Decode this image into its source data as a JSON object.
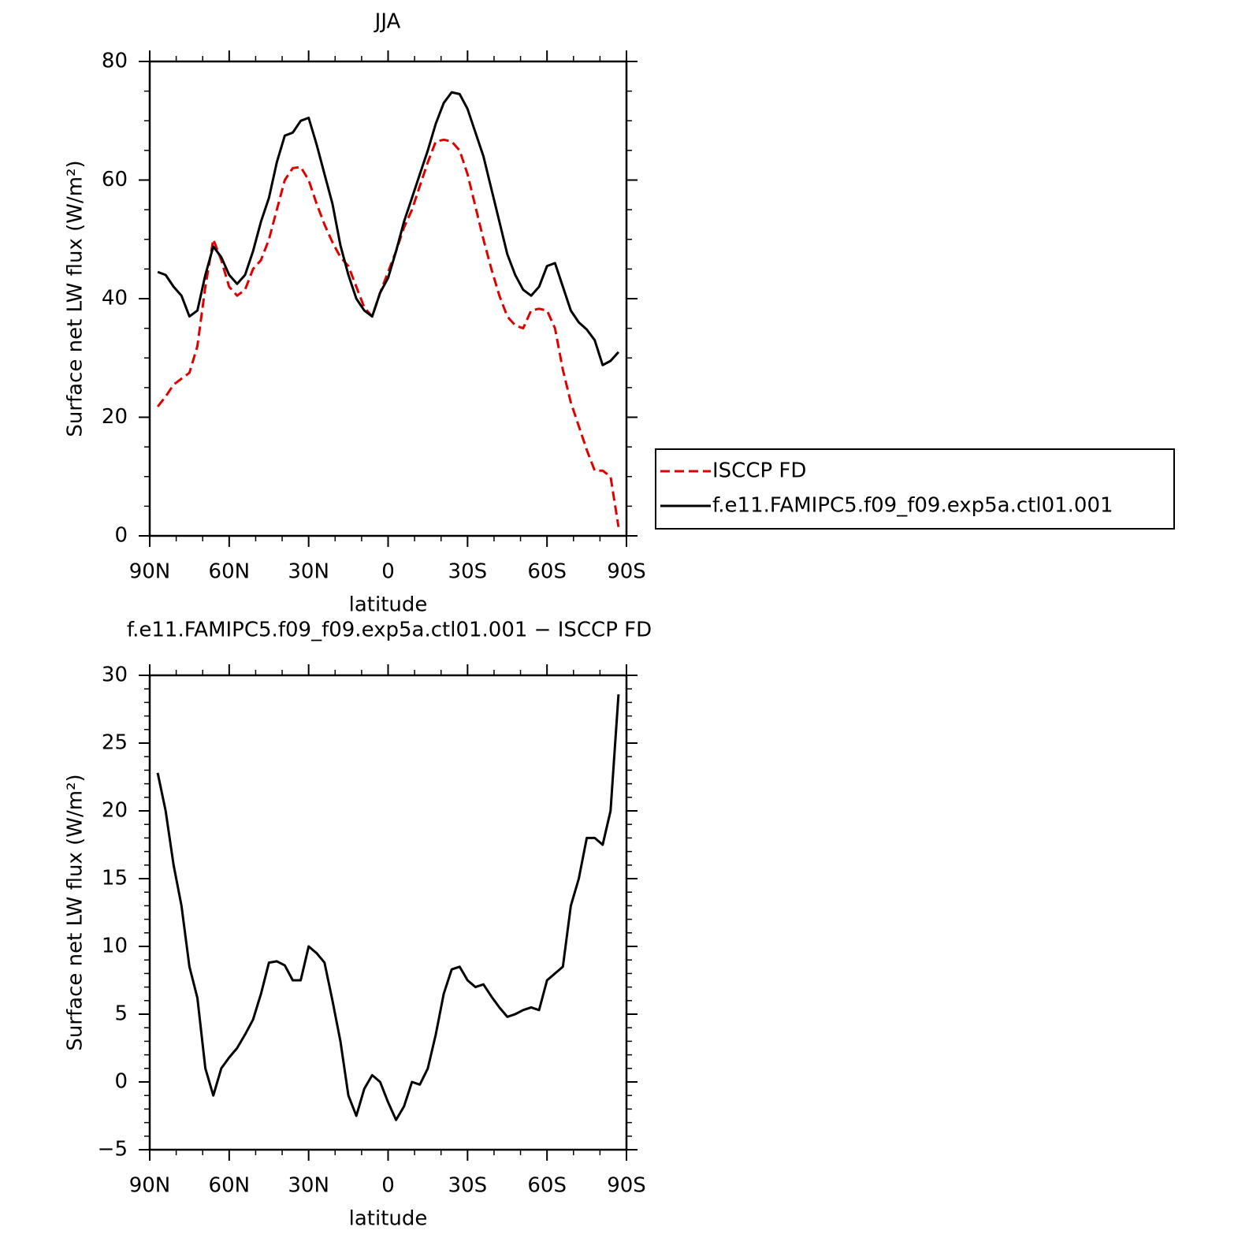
{
  "chart_data": [
    {
      "type": "line",
      "title": "JJA",
      "x_label": "latitude",
      "y_label": "Surface net LW flux (W/m²)",
      "x": [
        87,
        84,
        81,
        78,
        75,
        72,
        69,
        66,
        63,
        60,
        57,
        54,
        51,
        48,
        45,
        42,
        39,
        36,
        33,
        30,
        27,
        24,
        21,
        18,
        15,
        12,
        9,
        6,
        3,
        0,
        -3,
        -6,
        -9,
        -12,
        -15,
        -18,
        -21,
        -24,
        -27,
        -30,
        -33,
        -36,
        -39,
        -42,
        -45,
        -48,
        -51,
        -54,
        -57,
        -60,
        -63,
        -66,
        -69,
        -72,
        -75,
        -78,
        -81,
        -84,
        -87
      ],
      "xlim": [
        90,
        -90
      ],
      "xticks": [
        {
          "value": 90,
          "label": "90N"
        },
        {
          "value": 60,
          "label": "60N"
        },
        {
          "value": 30,
          "label": "30N"
        },
        0,
        {
          "value": -30,
          "label": "30S"
        },
        {
          "value": -60,
          "label": "60S"
        },
        {
          "value": -90,
          "label": "90S"
        }
      ],
      "ylim": [
        0,
        80
      ],
      "yticks": [
        0,
        20,
        40,
        60,
        80
      ],
      "legend": "right",
      "series": [
        {
          "name": "ISCCP FD",
          "color": "#e00000",
          "dash": true,
          "values": [
            21.8,
            23.5,
            25.5,
            26.5,
            27.5,
            32,
            42,
            50,
            46.5,
            42,
            40.5,
            41.5,
            45,
            46.5,
            50,
            55,
            60,
            62,
            62.2,
            60,
            56,
            52.5,
            49.5,
            47,
            45.5,
            42,
            38.5,
            37,
            41,
            44.5,
            48,
            52,
            55,
            59,
            63,
            66.5,
            66.8,
            66.5,
            65,
            61,
            55.5,
            50,
            45,
            40.5,
            37,
            35.5,
            35,
            38,
            38.3,
            38,
            35,
            28,
            22.5,
            18.5,
            14.5,
            11,
            11,
            10,
            1.5
          ]
        },
        {
          "name": "f.e11.FAMIPC5.f09_f09.exp5a.ctl01.001",
          "color": "#000000",
          "dash": false,
          "values": [
            44.5,
            44,
            42,
            40.5,
            37,
            38,
            44,
            48.8,
            47,
            44,
            42.5,
            44,
            48,
            53,
            57,
            63,
            67.5,
            68,
            70,
            70.5,
            66,
            61,
            56,
            49,
            44,
            40,
            38,
            37,
            41,
            43.5,
            48,
            53,
            57,
            61,
            65,
            69.5,
            73,
            74.8,
            74.5,
            72,
            68,
            64,
            58.5,
            53,
            47.5,
            44,
            41.5,
            40.5,
            42,
            45.5,
            46,
            42,
            38,
            36,
            34.8,
            33,
            28.8,
            29.5,
            31
          ]
        }
      ]
    },
    {
      "type": "line",
      "title": "f.e11.FAMIPC5.f09_f09.exp5a.ctl01.001 − ISCCP FD",
      "x_label": "latitude",
      "y_label": "Surface net LW flux (W/m²)",
      "x": [
        87,
        84,
        81,
        78,
        75,
        72,
        69,
        66,
        63,
        60,
        57,
        54,
        51,
        48,
        45,
        42,
        39,
        36,
        33,
        30,
        27,
        24,
        21,
        18,
        15,
        12,
        9,
        6,
        3,
        0,
        -3,
        -6,
        -9,
        -12,
        -15,
        -18,
        -21,
        -24,
        -27,
        -30,
        -33,
        -36,
        -39,
        -42,
        -45,
        -48,
        -51,
        -54,
        -57,
        -60,
        -63,
        -66,
        -69,
        -72,
        -75,
        -78,
        -81,
        -84,
        -87
      ],
      "xlim": [
        90,
        -90
      ],
      "xticks": [
        {
          "value": 90,
          "label": "90N"
        },
        {
          "value": 60,
          "label": "60N"
        },
        {
          "value": 30,
          "label": "30N"
        },
        0,
        {
          "value": -30,
          "label": "30S"
        },
        {
          "value": -60,
          "label": "60S"
        },
        {
          "value": -90,
          "label": "90S"
        }
      ],
      "ylim": [
        -5,
        30
      ],
      "yticks": [
        {
          "value": -5,
          "label": "−5"
        },
        0,
        5,
        10,
        15,
        20,
        25,
        30
      ],
      "series": [
        {
          "color": "#000000",
          "dash": false,
          "values": [
            22.8,
            20,
            16,
            13,
            8.5,
            6.2,
            1,
            -1,
            1,
            1.8,
            2.5,
            3.5,
            4.6,
            6.5,
            8.8,
            8.9,
            8.6,
            7.5,
            7.5,
            10,
            9.5,
            8.8,
            6,
            3,
            -1,
            -2.5,
            -0.5,
            0.5,
            0,
            -1.5,
            -2.8,
            -1.8,
            0,
            -0.2,
            1,
            3.5,
            6.5,
            8.3,
            8.5,
            7.5,
            7,
            7.2,
            6.3,
            5.5,
            4.8,
            5,
            5.3,
            5.5,
            5.3,
            7.5,
            8,
            8.5,
            13,
            15,
            18,
            18,
            17.5,
            20,
            28.6
          ]
        }
      ]
    }
  ]
}
